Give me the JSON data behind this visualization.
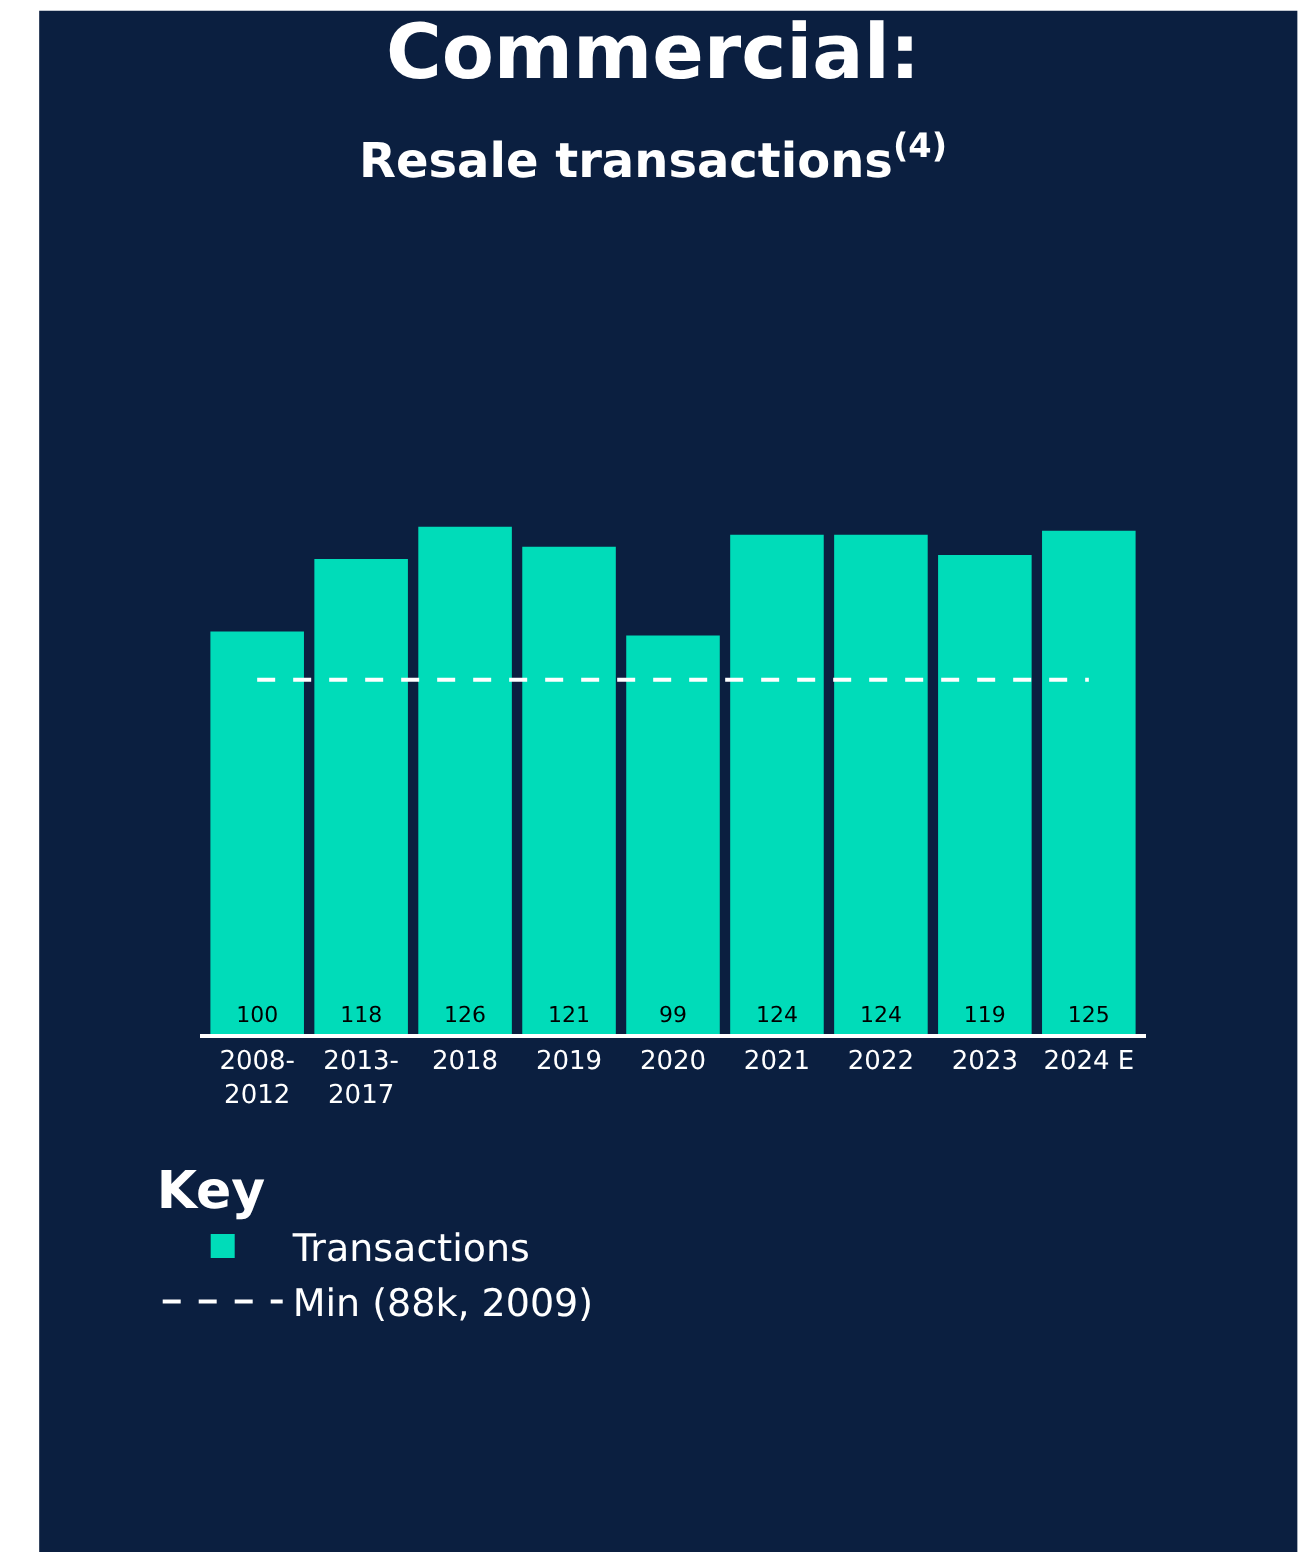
{
  "chart_data": {
    "type": "bar",
    "title": "Commercial:",
    "subtitle": "Resale transactions$^{(4)}$",
    "legend_title": "Key",
    "categories": [
      "2008-2012",
      "2013-2017",
      "2018",
      "2019",
      "2020",
      "2021",
      "2022",
      "2023",
      "2024 E"
    ],
    "series": [
      {
        "name": "Transactions",
        "color": "#00dcb9",
        "values": [
          100,
          118,
          126,
          121,
          99,
          124,
          124,
          119,
          125
        ]
      }
    ],
    "data_labels": true,
    "ref_lines": [
      {
        "axis": "y",
        "value": 88,
        "label": "Min (88k, 2009)",
        "color": "#ffffff",
        "line_style": "dashed"
      }
    ],
    "legend": "bottom",
    "grid": false
  }
}
